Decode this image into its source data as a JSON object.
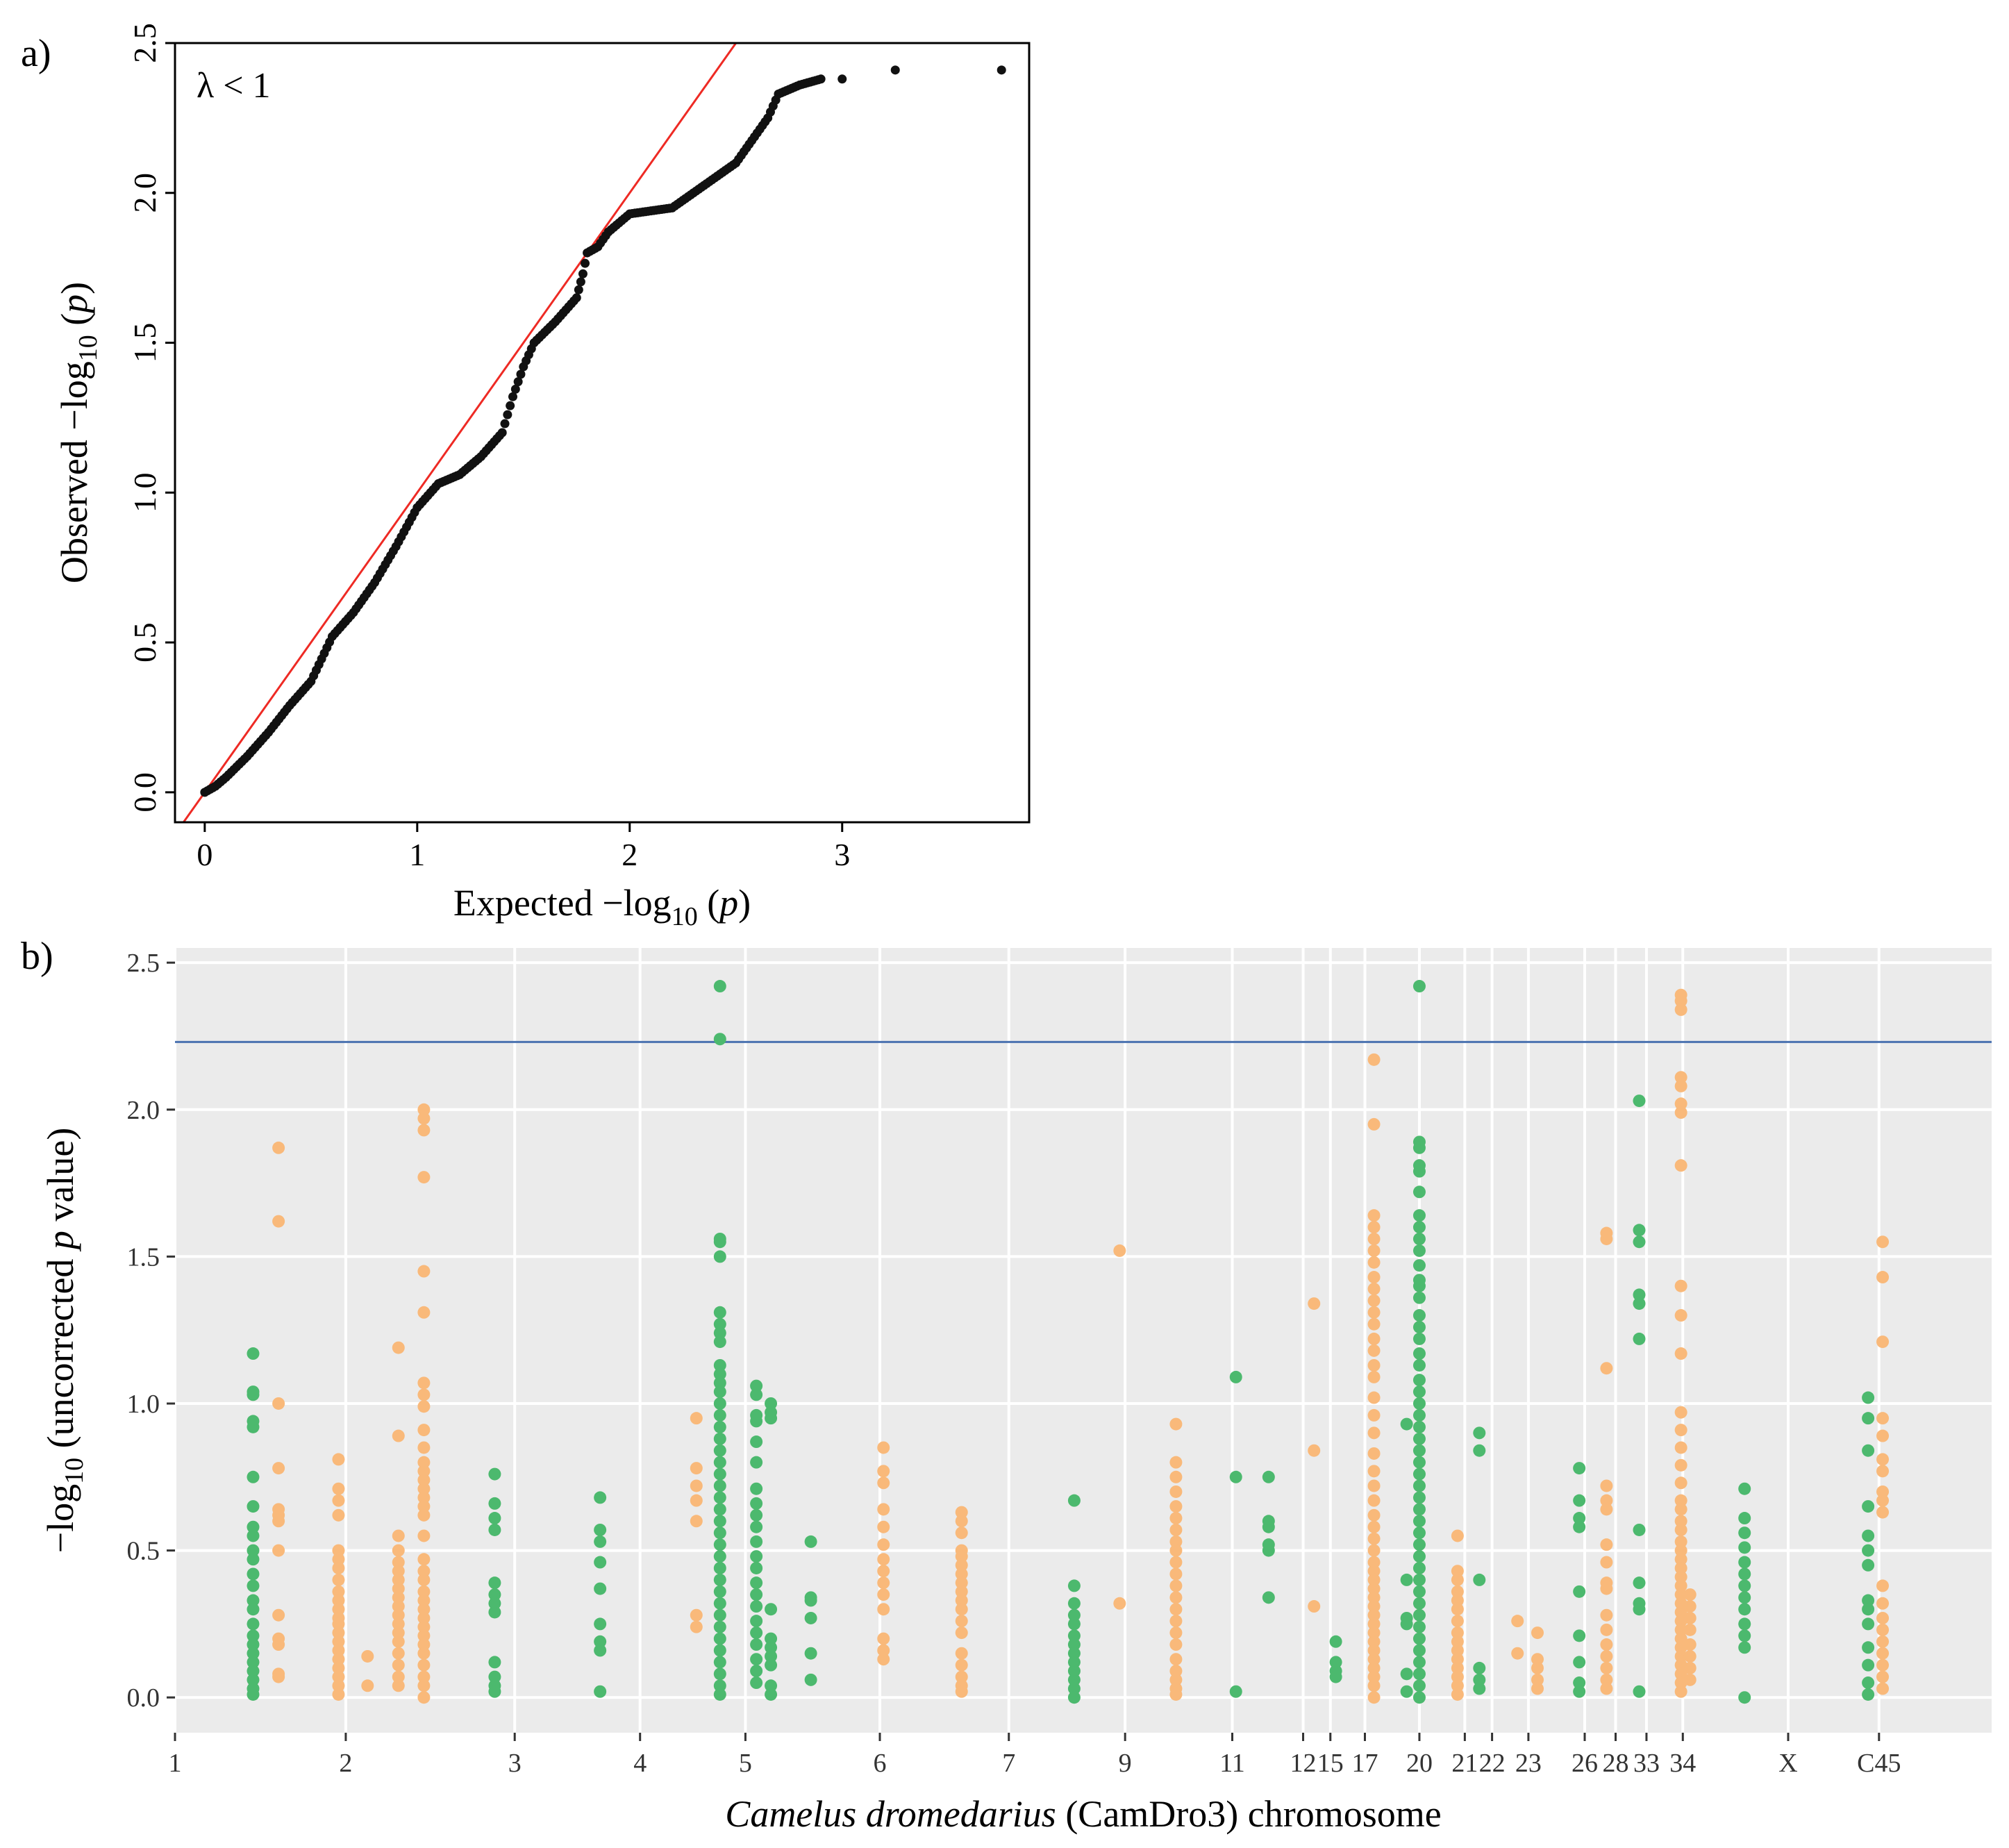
{
  "chart_data": [
    {
      "panel_label": "a)",
      "type": "scatter",
      "title": "",
      "annotation": "λ < 1",
      "xlabel_main": "Expected −log",
      "xlabel_sub": "10",
      "xlabel_tail": " (",
      "xlabel_italic": "p",
      "xlabel_close": ")",
      "ylabel_main": "Observed −log",
      "ylabel_sub": "10",
      "ylabel_tail": " (",
      "ylabel_italic": "p",
      "ylabel_close": ")",
      "xlim": [
        -0.14,
        3.88
      ],
      "ylim": [
        -0.1,
        2.5
      ],
      "xticks": [
        0,
        1,
        2,
        3
      ],
      "xtick_labels": [
        "0",
        "1",
        "2",
        "3"
      ],
      "yticks": [
        0.0,
        0.5,
        1.0,
        1.5,
        2.0,
        2.5
      ],
      "ytick_labels": [
        "0.0",
        "0.5",
        "1.0",
        "1.5",
        "2.0",
        "2.5"
      ],
      "reference_line": {
        "description": "y = x",
        "color": "#ee2a24"
      },
      "point_color": "#111111",
      "curve": [
        [
          0,
          0
        ],
        [
          0.05,
          0.02
        ],
        [
          0.1,
          0.05
        ],
        [
          0.2,
          0.12
        ],
        [
          0.3,
          0.2
        ],
        [
          0.4,
          0.29
        ],
        [
          0.5,
          0.37
        ],
        [
          0.6,
          0.52
        ],
        [
          0.7,
          0.6
        ],
        [
          0.8,
          0.7
        ],
        [
          0.9,
          0.82
        ],
        [
          1.0,
          0.95
        ],
        [
          1.1,
          1.03
        ],
        [
          1.2,
          1.06
        ],
        [
          1.3,
          1.12
        ],
        [
          1.4,
          1.2
        ],
        [
          1.45,
          1.32
        ],
        [
          1.5,
          1.42
        ],
        [
          1.55,
          1.5
        ],
        [
          1.65,
          1.57
        ],
        [
          1.75,
          1.65
        ],
        [
          1.78,
          1.73
        ],
        [
          1.8,
          1.8
        ],
        [
          1.85,
          1.82
        ],
        [
          1.9,
          1.87
        ],
        [
          1.95,
          1.9
        ],
        [
          2.0,
          1.93
        ],
        [
          2.1,
          1.94
        ],
        [
          2.2,
          1.95
        ],
        [
          2.3,
          2.0
        ],
        [
          2.4,
          2.05
        ],
        [
          2.5,
          2.1
        ],
        [
          2.55,
          2.15
        ],
        [
          2.65,
          2.25
        ],
        [
          2.7,
          2.33
        ],
        [
          2.8,
          2.36
        ],
        [
          2.9,
          2.38
        ]
      ],
      "tail_points": [
        [
          3.0,
          2.38
        ],
        [
          3.25,
          2.41
        ],
        [
          3.75,
          2.41
        ]
      ]
    },
    {
      "panel_label": "b)",
      "type": "scatter",
      "title": "",
      "xlabel_italic": "Camelus dromedarius",
      "xlabel_rest": " (CamDro3) chromosome",
      "ylabel_main": "−log",
      "ylabel_sub": "10",
      "ylabel_mid": " (uncorrected ",
      "ylabel_italic": "p",
      "ylabel_tail": " value)",
      "xlim": [
        0,
        100
      ],
      "ylim": [
        -0.12,
        2.55
      ],
      "yticks": [
        0.0,
        0.5,
        1.0,
        1.5,
        2.0,
        2.5
      ],
      "ytick_labels": [
        "0.0",
        "0.5",
        "1.0",
        "1.5",
        "2.0",
        "2.5"
      ],
      "threshold": {
        "value": 2.23,
        "color": "#4a72b0"
      },
      "colors": {
        "green": "#4cb96e",
        "orange": "#f9b97a",
        "panel_bg": "#ebebeb",
        "grid": "#ffffff"
      },
      "xticks": [
        {
          "label": "1",
          "pos": 0.0
        },
        {
          "label": "2",
          "pos": 9.4
        },
        {
          "label": "3",
          "pos": 18.7
        },
        {
          "label": "4",
          "pos": 25.6
        },
        {
          "label": "5",
          "pos": 31.4
        },
        {
          "label": "6",
          "pos": 38.8
        },
        {
          "label": "7",
          "pos": 45.9
        },
        {
          "label": "9",
          "pos": 52.3
        },
        {
          "label": "11",
          "pos": 58.2
        },
        {
          "label": "12",
          "pos": 62.1
        },
        {
          "label": "15",
          "pos": 63.6
        },
        {
          "label": "17",
          "pos": 65.5
        },
        {
          "label": "20",
          "pos": 68.5
        },
        {
          "label": "21",
          "pos": 71.0
        },
        {
          "label": "22",
          "pos": 72.5
        },
        {
          "label": "23",
          "pos": 74.5
        },
        {
          "label": "26",
          "pos": 77.6
        },
        {
          "label": "28",
          "pos": 79.3
        },
        {
          "label": "33",
          "pos": 81.0
        },
        {
          "label": "34",
          "pos": 83.0
        },
        {
          "label": "X",
          "pos": 88.8
        },
        {
          "label": "C45",
          "pos": 93.8
        }
      ],
      "columns": [
        {
          "x": 4.3,
          "color": "green",
          "y": [
            1.17,
            1.04,
            1.03,
            0.94,
            0.92,
            0.75,
            0.65,
            0.58,
            0.55,
            0.5,
            0.47,
            0.42,
            0.38,
            0.33,
            0.3,
            0.25,
            0.21,
            0.18,
            0.15,
            0.12,
            0.09,
            0.06,
            0.03,
            0.01
          ]
        },
        {
          "x": 5.7,
          "color": "orange",
          "y": [
            1.87,
            1.62,
            1.0,
            0.78,
            0.64,
            0.62,
            0.6,
            0.5,
            0.28,
            0.2,
            0.18,
            0.08,
            0.07
          ]
        },
        {
          "x": 9.0,
          "color": "orange",
          "y": [
            0.81,
            0.71,
            0.67,
            0.62,
            0.5,
            0.47,
            0.44,
            0.4,
            0.36,
            0.33,
            0.3,
            0.27,
            0.25,
            0.22,
            0.19,
            0.16,
            0.13,
            0.1,
            0.07,
            0.04,
            0.01
          ]
        },
        {
          "x": 10.6,
          "color": "orange",
          "y": [
            0.14,
            0.04
          ]
        },
        {
          "x": 12.3,
          "color": "orange",
          "y": [
            1.19,
            0.89,
            0.55,
            0.5,
            0.46,
            0.43,
            0.4,
            0.37,
            0.34,
            0.31,
            0.28,
            0.25,
            0.22,
            0.19,
            0.15,
            0.11,
            0.07,
            0.04
          ]
        },
        {
          "x": 13.7,
          "color": "orange",
          "y": [
            2.0,
            1.97,
            1.93,
            1.77,
            1.45,
            1.31,
            1.07,
            1.03,
            0.99,
            0.91,
            0.85,
            0.8,
            0.77,
            0.74,
            0.71,
            0.68,
            0.65,
            0.62,
            0.55,
            0.47,
            0.43,
            0.4,
            0.36,
            0.33,
            0.3,
            0.27,
            0.24,
            0.21,
            0.18,
            0.15,
            0.11,
            0.07,
            0.04,
            0.0
          ]
        },
        {
          "x": 17.6,
          "color": "green",
          "y": [
            0.76,
            0.66,
            0.61,
            0.57,
            0.39,
            0.35,
            0.32,
            0.29,
            0.12,
            0.07,
            0.04,
            0.02
          ]
        },
        {
          "x": 23.4,
          "color": "green",
          "y": [
            0.68,
            0.57,
            0.53,
            0.46,
            0.37,
            0.25,
            0.19,
            0.16,
            0.02
          ]
        },
        {
          "x": 28.7,
          "color": "orange",
          "y": [
            0.95,
            0.78,
            0.72,
            0.67,
            0.6,
            0.28,
            0.24
          ]
        },
        {
          "x": 30.0,
          "color": "green",
          "y": [
            2.42,
            2.24,
            1.56,
            1.55,
            1.5,
            1.31,
            1.27,
            1.24,
            1.21,
            1.13,
            1.1,
            1.07,
            1.04,
            1.0,
            0.96,
            0.92,
            0.88,
            0.84,
            0.8,
            0.76,
            0.72,
            0.68,
            0.64,
            0.6,
            0.56,
            0.52,
            0.48,
            0.44,
            0.4,
            0.36,
            0.32,
            0.28,
            0.24,
            0.2,
            0.16,
            0.12,
            0.08,
            0.04,
            0.01
          ]
        },
        {
          "x": 32.0,
          "color": "green",
          "y": [
            1.06,
            1.03,
            0.96,
            0.94,
            0.87,
            0.8,
            0.71,
            0.66,
            0.62,
            0.58,
            0.53,
            0.48,
            0.44,
            0.39,
            0.35,
            0.31,
            0.26,
            0.22,
            0.18,
            0.13,
            0.09,
            0.05
          ]
        },
        {
          "x": 32.8,
          "color": "green",
          "y": [
            1.0,
            0.97,
            0.95,
            0.3,
            0.2,
            0.17,
            0.14,
            0.11,
            0.04,
            0.01
          ]
        },
        {
          "x": 35.0,
          "color": "green",
          "y": [
            0.53,
            0.34,
            0.33,
            0.27,
            0.15,
            0.06
          ]
        },
        {
          "x": 39.0,
          "color": "orange",
          "y": [
            0.85,
            0.77,
            0.73,
            0.64,
            0.58,
            0.52,
            0.47,
            0.43,
            0.39,
            0.35,
            0.3,
            0.2,
            0.16,
            0.13
          ]
        },
        {
          "x": 43.3,
          "color": "orange",
          "y": [
            0.63,
            0.6,
            0.56,
            0.5,
            0.48,
            0.45,
            0.42,
            0.39,
            0.36,
            0.33,
            0.3,
            0.26,
            0.22,
            0.15,
            0.11,
            0.07,
            0.04,
            0.02
          ]
        },
        {
          "x": 49.5,
          "color": "green",
          "y": [
            0.67,
            0.38,
            0.32,
            0.28,
            0.25,
            0.21,
            0.18,
            0.15,
            0.12,
            0.09,
            0.06,
            0.03,
            0.0
          ]
        },
        {
          "x": 52.0,
          "color": "orange",
          "y": [
            1.52,
            0.32
          ]
        },
        {
          "x": 55.1,
          "color": "orange",
          "y": [
            0.93,
            0.8,
            0.75,
            0.7,
            0.65,
            0.61,
            0.57,
            0.53,
            0.5,
            0.46,
            0.42,
            0.38,
            0.34,
            0.3,
            0.26,
            0.22,
            0.18,
            0.13,
            0.09,
            0.06,
            0.03,
            0.01
          ]
        },
        {
          "x": 58.4,
          "color": "green",
          "y": [
            1.09,
            0.75,
            0.02
          ]
        },
        {
          "x": 60.2,
          "color": "green",
          "y": [
            0.75,
            0.6,
            0.58,
            0.52,
            0.5,
            0.34
          ]
        },
        {
          "x": 62.7,
          "color": "orange",
          "y": [
            1.34,
            0.84,
            0.31
          ]
        },
        {
          "x": 63.9,
          "color": "green",
          "y": [
            0.19,
            0.12,
            0.09,
            0.07
          ]
        },
        {
          "x": 66.0,
          "color": "orange",
          "y": [
            2.17,
            1.95,
            1.64,
            1.6,
            1.56,
            1.52,
            1.48,
            1.43,
            1.39,
            1.35,
            1.31,
            1.27,
            1.22,
            1.18,
            1.13,
            1.09,
            1.02,
            0.96,
            0.9,
            0.83,
            0.77,
            0.72,
            0.67,
            0.62,
            0.58,
            0.54,
            0.5,
            0.46,
            0.43,
            0.4,
            0.37,
            0.34,
            0.31,
            0.28,
            0.25,
            0.22,
            0.19,
            0.16,
            0.13,
            0.1,
            0.07,
            0.04,
            0.0
          ]
        },
        {
          "x": 67.8,
          "color": "green",
          "y": [
            0.93,
            0.4,
            0.27,
            0.25,
            0.08,
            0.02
          ]
        },
        {
          "x": 68.5,
          "color": "green",
          "y": [
            2.42,
            1.89,
            1.87,
            1.81,
            1.79,
            1.72,
            1.64,
            1.6,
            1.56,
            1.52,
            1.47,
            1.42,
            1.4,
            1.36,
            1.3,
            1.26,
            1.22,
            1.17,
            1.13,
            1.08,
            1.04,
            1.0,
            0.96,
            0.92,
            0.88,
            0.84,
            0.8,
            0.76,
            0.72,
            0.68,
            0.64,
            0.6,
            0.56,
            0.52,
            0.48,
            0.44,
            0.4,
            0.36,
            0.32,
            0.28,
            0.24,
            0.2,
            0.16,
            0.12,
            0.08,
            0.04,
            0.0
          ]
        },
        {
          "x": 70.6,
          "color": "orange",
          "y": [
            0.55,
            0.43,
            0.4,
            0.36,
            0.33,
            0.3,
            0.26,
            0.22,
            0.19,
            0.16,
            0.13,
            0.1,
            0.07,
            0.04,
            0.01
          ]
        },
        {
          "x": 71.8,
          "color": "green",
          "y": [
            0.9,
            0.84,
            0.4,
            0.1,
            0.06,
            0.03
          ]
        },
        {
          "x": 73.9,
          "color": "orange",
          "y": [
            0.26,
            0.15
          ]
        },
        {
          "x": 75.0,
          "color": "orange",
          "y": [
            0.22,
            0.13,
            0.1,
            0.06,
            0.03
          ]
        },
        {
          "x": 77.3,
          "color": "green",
          "y": [
            0.78,
            0.67,
            0.61,
            0.58,
            0.36,
            0.21,
            0.12,
            0.05,
            0.02
          ]
        },
        {
          "x": 78.8,
          "color": "orange",
          "y": [
            1.58,
            1.56,
            1.12,
            0.72,
            0.67,
            0.64,
            0.52,
            0.46,
            0.39,
            0.37,
            0.28,
            0.23,
            0.18,
            0.14,
            0.1,
            0.06,
            0.03
          ]
        },
        {
          "x": 80.6,
          "color": "green",
          "y": [
            2.03,
            1.59,
            1.55,
            1.37,
            1.34,
            1.22,
            0.57,
            0.39,
            0.32,
            0.3,
            0.02
          ]
        },
        {
          "x": 82.9,
          "color": "orange",
          "y": [
            2.39,
            2.37,
            2.34,
            2.11,
            2.08,
            2.02,
            1.99,
            1.81,
            1.4,
            1.3,
            1.17,
            0.97,
            0.91,
            0.85,
            0.79,
            0.73,
            0.67,
            0.64,
            0.6,
            0.57,
            0.53,
            0.5,
            0.47,
            0.44,
            0.41,
            0.38,
            0.35,
            0.32,
            0.29,
            0.26,
            0.23,
            0.2,
            0.17,
            0.14,
            0.11,
            0.08,
            0.05,
            0.02
          ]
        },
        {
          "x": 83.4,
          "color": "orange",
          "y": [
            0.35,
            0.31,
            0.27,
            0.23,
            0.18,
            0.14,
            0.1,
            0.06
          ]
        },
        {
          "x": 86.4,
          "color": "green",
          "y": [
            0.71,
            0.61,
            0.56,
            0.51,
            0.46,
            0.42,
            0.38,
            0.34,
            0.3,
            0.25,
            0.21,
            0.17,
            0.0
          ]
        },
        {
          "x": 93.2,
          "color": "green",
          "y": [
            1.02,
            0.95,
            0.84,
            0.65,
            0.55,
            0.5,
            0.45,
            0.33,
            0.3,
            0.25,
            0.17,
            0.11,
            0.05,
            0.01
          ]
        },
        {
          "x": 94.0,
          "color": "orange",
          "y": [
            1.55,
            1.43,
            1.21,
            0.95,
            0.89,
            0.81,
            0.77,
            0.7,
            0.67,
            0.63,
            0.38,
            0.32,
            0.27,
            0.23,
            0.19,
            0.15,
            0.11,
            0.07,
            0.03
          ]
        }
      ]
    }
  ]
}
